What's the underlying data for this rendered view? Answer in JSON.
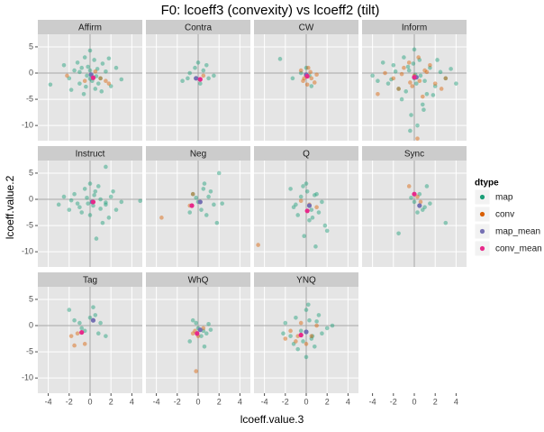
{
  "chart_data": {
    "type": "scatter",
    "title": "F0: lcoeff3 (convexity) vs lcoeff2 (tilt)",
    "xlabel": "lcoeff.value.3",
    "ylabel": "lcoeff.value.2",
    "legend_title": "dtype",
    "xlim": [
      -5,
      5
    ],
    "ylim": [
      -12.9,
      7.4
    ],
    "xticks": [
      -4,
      -2,
      0,
      2,
      4
    ],
    "yticks": [
      5,
      0,
      -5,
      -10
    ],
    "grid": true,
    "series": [
      {
        "name": "map",
        "color": "#1b9e77"
      },
      {
        "name": "conv",
        "color": "#d95f02"
      },
      {
        "name": "map_mean",
        "color": "#7570b3"
      },
      {
        "name": "conv_mean",
        "color": "#e7298a"
      }
    ],
    "facets": [
      {
        "title": "Affirm",
        "series": [
          {
            "x": [
              -3.8,
              -2.5,
              -2,
              -1.5,
              -1.2,
              -1,
              -0.8,
              -0.5,
              -0.3,
              0,
              0,
              0.2,
              0.4,
              0.5,
              0.7,
              1,
              1.2,
              1.5,
              2,
              2.5,
              -0.6,
              0.3,
              0.8,
              -1.8,
              1.8,
              0.1,
              -0.2,
              0.6,
              -1,
              1.1,
              0,
              -0.4,
              3
            ],
            "values": [
              -2.2,
              1.5,
              -1,
              0.5,
              2,
              -2,
              1,
              3,
              -0.5,
              4.3,
              0.5,
              -1.5,
              2.5,
              -3,
              0.8,
              -1,
              1.8,
              0.3,
              -2.5,
              1,
              -4,
              -0.8,
              -2,
              -3.2,
              2.8,
              -0.3,
              1.2,
              -0.6,
              0.2,
              -3.5,
              -1.1,
              -2.6,
              -1.2
            ]
          },
          {
            "x": [
              -2.2,
              1,
              1.8,
              -0.5,
              0.5,
              1.5
            ],
            "values": [
              -0.5,
              -1,
              -2,
              -1.5,
              0.3,
              -1.5
            ]
          },
          {
            "x": [
              0.1
            ],
            "values": [
              -0.3
            ]
          },
          {
            "x": [
              0.3
            ],
            "values": [
              -0.9
            ]
          }
        ]
      },
      {
        "title": "Contra",
        "series": [
          {
            "x": [
              -1.5,
              -1,
              0,
              0.5,
              1,
              0.2,
              -0.3,
              1.5,
              -0.8,
              0.8
            ],
            "values": [
              -1.5,
              -1,
              2,
              0.5,
              -1,
              -2,
              1,
              -0.5,
              0,
              1.5
            ]
          },
          {
            "x": [
              0.5
            ],
            "values": [
              -0.5
            ]
          },
          {
            "x": [
              -0.2
            ],
            "values": [
              -1
            ]
          },
          {
            "x": [
              0.2
            ],
            "values": [
              -1.2
            ]
          }
        ]
      },
      {
        "title": "CW",
        "series": [
          {
            "x": [
              -2.5,
              0,
              0.3,
              0.5,
              -0.5,
              -1.3
            ],
            "values": [
              2.7,
              1,
              -0.5,
              -2.5,
              0,
              -1
            ]
          },
          {
            "x": [
              -0.5,
              0,
              0.2,
              0.5,
              -0.3,
              0.8,
              0.4,
              -0.2,
              1,
              0.1
            ],
            "values": [
              0.5,
              -0.5,
              1,
              -1,
              -1.5,
              -1.8,
              0.2,
              -1,
              -0.3,
              -2.2
            ]
          },
          {
            "x": [
              0
            ],
            "values": [
              -0.3
            ]
          },
          {
            "x": [
              0.1
            ],
            "values": [
              -0.6
            ]
          }
        ]
      },
      {
        "title": "Inform",
        "series": [
          {
            "x": [
              -4,
              -3,
              -2.5,
              -2,
              -1.5,
              -1,
              -0.5,
              0,
              0.5,
              1,
              1.5,
              2,
              2.5,
              3,
              3.5,
              -1.2,
              0.8,
              -0.3,
              0.3,
              1.2,
              -2.2,
              2.2,
              0,
              -0.8,
              0.6,
              -0.6,
              1.8,
              -1.8,
              0.2,
              -0.1,
              4,
              -3.5,
              0.9,
              -0.4,
              0.1
            ],
            "values": [
              -0.5,
              2,
              -2,
              1.5,
              -3,
              3,
              0.5,
              -1,
              2.5,
              -1.5,
              1,
              -2.5,
              0.2,
              -1,
              0.8,
              -5,
              -6,
              -8,
              -10,
              -4,
              -1.2,
              2.5,
              4.5,
              -3.5,
              -0.5,
              1.2,
              -4.2,
              0.3,
              -2,
              1.8,
              -2,
              -1.5,
              -7,
              -11,
              -0.3
            ]
          },
          {
            "x": [
              -3.5,
              -2,
              -1,
              0,
              1,
              2,
              3,
              -1.5,
              0.5,
              1.5,
              -0.5,
              0.3,
              -2.8,
              2.6,
              -0.2,
              0.8,
              -1.2,
              1.2,
              0.4,
              -0.4
            ],
            "values": [
              -4,
              -1,
              1,
              -0.5,
              0.5,
              -2,
              -1,
              -3,
              -1.5,
              1.5,
              2,
              -12.5,
              0,
              -3,
              -2.5,
              -4.5,
              -0.2,
              0.2,
              3,
              -1.8
            ]
          },
          {
            "x": [
              0.2
            ],
            "values": [
              -0.8
            ]
          },
          {
            "x": [
              0
            ],
            "values": [
              -0.8
            ]
          }
        ]
      },
      {
        "title": "Instruct",
        "series": [
          {
            "x": [
              -3,
              -2.5,
              -2,
              -1.5,
              -1,
              -0.5,
              0,
              0.5,
              1,
              1.5,
              2,
              2.5,
              3,
              4.8,
              -1.2,
              0.8,
              1.5,
              -0.8,
              0.3,
              -0.3,
              1.8,
              2.2,
              0.6,
              -1.8,
              1,
              0,
              1.5,
              -0.2,
              0.4,
              1.2
            ],
            "values": [
              -1,
              0.5,
              -2,
              1,
              -1.5,
              2,
              -3,
              1.5,
              0,
              -1,
              0.5,
              -2,
              -0.5,
              -0.3,
              -0.8,
              2.5,
              6.2,
              -2.5,
              -1.2,
              0.3,
              -3.5,
              1.5,
              -7.5,
              -0.2,
              -1.8,
              3,
              -0.6,
              -0.8,
              0.8,
              -4.5
            ]
          },
          {
            "x": [],
            "values": []
          },
          {
            "x": [
              0.2
            ],
            "values": [
              -0.5
            ]
          },
          {
            "x": [
              0.3
            ],
            "values": [
              -0.5
            ]
          }
        ]
      },
      {
        "title": "Neg",
        "series": [
          {
            "x": [
              -0.5,
              0,
              0.5,
              1,
              1.5,
              2,
              0.3,
              -0.2,
              0.8,
              1.2,
              2.3,
              0.6,
              1.8,
              -0.8
            ],
            "values": [
              1,
              -0.5,
              2,
              0.5,
              -1,
              5,
              -2,
              0.3,
              -3,
              1.5,
              -0.8,
              3,
              -4.5,
              -2.5
            ]
          },
          {
            "x": [
              -3.5,
              -0.5,
              -0.8,
              0.2
            ],
            "values": [
              -3.5,
              1,
              -1.2,
              -0.5
            ]
          },
          {
            "x": [
              0.2
            ],
            "values": [
              -0.5
            ]
          },
          {
            "x": [
              -0.6
            ],
            "values": [
              -1.2
            ]
          }
        ]
      },
      {
        "title": "Q",
        "series": [
          {
            "x": [
              -1.5,
              -1,
              -0.5,
              0,
              0.5,
              1,
              1.5,
              -0.8,
              0.3,
              0.8,
              -0.3,
              1.2,
              2,
              0.1,
              -1.2,
              0.6,
              0.9,
              1.8,
              -0.2
            ],
            "values": [
              2,
              -1,
              0.5,
              3,
              -2,
              1,
              -0.5,
              -3,
              -4,
              0.8,
              2.5,
              -2.5,
              -6,
              1.5,
              -1.5,
              -3.5,
              -9,
              -5,
              -7
            ]
          },
          {
            "x": [
              -4.6,
              0.3,
              -0.5,
              1
            ],
            "values": [
              -8.7,
              -1,
              -0.3,
              -1.5
            ]
          },
          {
            "x": [
              0.3
            ],
            "values": [
              -1.2
            ]
          },
          {
            "x": [
              0.1
            ],
            "values": [
              -2.2
            ]
          }
        ]
      },
      {
        "title": "Sync",
        "series": [
          {
            "x": [
              0,
              0.5,
              1,
              -0.3,
              0.8,
              1.5,
              3,
              -1.5,
              0.3,
              1.2
            ],
            "values": [
              -0.5,
              1,
              -1.5,
              0.3,
              -2,
              -0.8,
              -4.5,
              -6.5,
              -2.5,
              2.5
            ]
          },
          {
            "x": [
              -0.5,
              0.3,
              0.6
            ],
            "values": [
              2.5,
              0.5,
              -0.5
            ]
          },
          {
            "x": [
              0.5
            ],
            "values": [
              -1.2
            ]
          },
          {
            "x": [
              0
            ],
            "values": [
              1
            ]
          }
        ]
      },
      {
        "title": "Tag",
        "series": [
          {
            "x": [
              -2,
              -1,
              -0.5,
              0,
              0.5,
              1,
              0.3,
              -0.8,
              1.5,
              0.8,
              -1.5
            ],
            "values": [
              3,
              0.5,
              -1,
              1.5,
              2,
              0.5,
              3.5,
              -0.5,
              -2,
              -1.5,
              1
            ]
          },
          {
            "x": [
              -1.8,
              -1.2,
              -0.5,
              -1.5
            ],
            "values": [
              -2,
              -1.5,
              -3.5,
              -3.8
            ]
          },
          {
            "x": [
              0.3
            ],
            "values": [
              1
            ]
          },
          {
            "x": [
              -0.8
            ],
            "values": [
              -1.3
            ]
          }
        ]
      },
      {
        "title": "WhQ",
        "series": [
          {
            "x": [
              -0.5,
              0,
              0.5,
              1,
              0.3,
              -0.2,
              0.8,
              -0.8,
              0.6,
              1.2
            ],
            "values": [
              1,
              -0.5,
              -1,
              0.3,
              -2,
              0.5,
              -1.5,
              -3,
              -4,
              -0.8
            ]
          },
          {
            "x": [
              -0.3,
              0,
              0.5,
              -0.5,
              -0.2
            ],
            "values": [
              -1,
              -2,
              -0.5,
              -1.5,
              -8.7
            ]
          },
          {
            "x": [
              0.2
            ],
            "values": [
              -0.8
            ]
          },
          {
            "x": [
              -0.1
            ],
            "values": [
              -1.5
            ]
          }
        ]
      },
      {
        "title": "YNQ",
        "series": [
          {
            "x": [
              -2,
              -1.5,
              -1,
              -0.5,
              0,
              0.5,
              1,
              1.5,
              2,
              -0.3,
              0.3,
              0.8,
              -0.8,
              1.2,
              0,
              -1.2,
              0.6,
              2.5,
              -2.2,
              0.2
            ],
            "values": [
              0.5,
              -2,
              1.5,
              -1,
              3,
              -2.5,
              0.8,
              -1.5,
              -0.5,
              -3,
              1,
              -4,
              -4.5,
              2,
              -6,
              -3.5,
              -2,
              0,
              -1.5,
              4
            ]
          },
          {
            "x": [
              -1.5,
              -1,
              -0.5,
              0.5,
              -2,
              -0.8,
              0,
              1
            ],
            "values": [
              -1,
              -3,
              0.5,
              -2,
              -2.5,
              -2,
              -3.5,
              0
            ]
          },
          {
            "x": [
              0
            ],
            "values": [
              -1.2
            ]
          },
          {
            "x": [
              -0.5
            ],
            "values": [
              -1.8
            ]
          }
        ]
      }
    ]
  }
}
